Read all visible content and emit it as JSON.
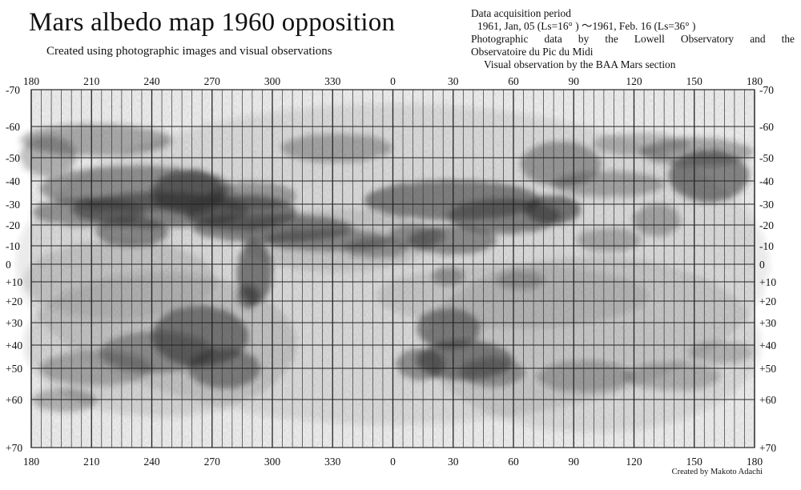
{
  "header": {
    "title": "Mars albedo map 1960  opposition",
    "subtitle": "Created using photographic images and visual observations"
  },
  "info": {
    "heading": "Data acquisition period",
    "period": "1961, Jan, 05 (Ls=16°  )  ～1961, Feb. 16 (Ls=36°  )",
    "photo_line1": "Photographic data by the Lowell Observatory and the",
    "photo_line2": "Observatoire du Pic du Midi",
    "visual": "Visual observation by the BAA Mars section"
  },
  "credit": "Created by Makoto Adachi",
  "map": {
    "longitude_labels": [
      "180",
      "210",
      "240",
      "270",
      "300",
      "330",
      "0",
      "30",
      "60",
      "90",
      "120",
      "150",
      "180"
    ],
    "latitude_labels": [
      "-70",
      "-60",
      "-50",
      "-40",
      "-30",
      "-20",
      "-10",
      "0",
      "+10",
      "+20",
      "+30",
      "+40",
      "+50",
      "+60",
      "+70"
    ],
    "shading": "pencil-shaded albedo features (dark = low albedo)"
  }
}
